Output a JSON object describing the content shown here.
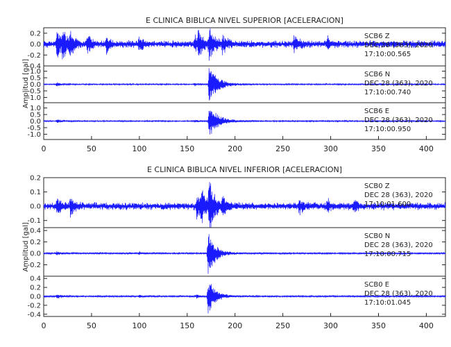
{
  "chart_data": [
    {
      "type": "line",
      "title": "E CLINICA BIBLICA NIVEL SUPERIOR [ACELERACION]",
      "ylabel": "Amplitud [gal]",
      "xlim": [
        0,
        420
      ],
      "x_ticks": [
        0,
        50,
        100,
        150,
        200,
        250,
        300,
        350,
        400
      ],
      "line_color": "#1a1aff",
      "traces": [
        {
          "component": "SCB6   Z",
          "date": "DEC 28 (363), 2020",
          "time": "17:10:00.565",
          "ylim": [
            -0.4,
            0.3
          ],
          "y_ticks": [
            -0.4,
            -0.2,
            0.0,
            0.2
          ],
          "events": [
            [
              14,
              0.25,
              4
            ],
            [
              20,
              0.26,
              5
            ],
            [
              28,
              0.2,
              3
            ],
            [
              46,
              0.16,
              4
            ],
            [
              66,
              0.16,
              3
            ],
            [
              100,
              0.12,
              4
            ],
            [
              158,
              0.14,
              4
            ],
            [
              162,
              0.22,
              4
            ],
            [
              173,
              0.3,
              5
            ],
            [
              187,
              0.16,
              4
            ],
            [
              262,
              0.15,
              4
            ],
            [
              297,
              0.11,
              3
            ]
          ],
          "noise": 0.05
        },
        {
          "component": "SCB6   N",
          "date": "DEC 28 (363), 2020",
          "time": "17:10:00.740",
          "ylim": [
            -1.4,
            1.4
          ],
          "y_ticks": [
            -1.0,
            -0.5,
            0.0,
            0.5,
            1.0
          ],
          "events": [
            [
              173,
              1.4,
              9
            ],
            [
              14,
              0.12,
              4
            ],
            [
              158,
              0.1,
              4
            ]
          ],
          "noise": 0.04
        },
        {
          "component": "SCB6   E",
          "date": "DEC 28 (363), 2020",
          "time": "17:10:00.950",
          "ylim": [
            -1.4,
            1.4
          ],
          "y_ticks": [
            -1.0,
            -0.5,
            0.0,
            0.5,
            1.0
          ],
          "events": [
            [
              173,
              1.3,
              9
            ],
            [
              14,
              0.12,
              4
            ],
            [
              158,
              0.1,
              4
            ]
          ],
          "noise": 0.04
        }
      ]
    },
    {
      "type": "line",
      "title": "E CLINICA BIBLICA NIVEL INFERIOR [ACELERACION]",
      "ylabel": "Amplitud [gal]",
      "xlim": [
        0,
        420
      ],
      "x_ticks": [
        0,
        50,
        100,
        150,
        200,
        250,
        300,
        350,
        400
      ],
      "line_color": "#1a1aff",
      "traces": [
        {
          "component": "SCB0   Z",
          "date": "DEC 28 (363), 2020",
          "time": "17:10:01.600",
          "ylim": [
            -0.15,
            0.2
          ],
          "y_ticks": [
            -0.1,
            0.0,
            0.1,
            0.2
          ],
          "events": [
            [
              14,
              0.06,
              4
            ],
            [
              28,
              0.055,
              4
            ],
            [
              160,
              0.08,
              5
            ],
            [
              165,
              0.09,
              5
            ],
            [
              173,
              0.2,
              5
            ],
            [
              187,
              0.05,
              4
            ],
            [
              267,
              0.05,
              4
            ],
            [
              297,
              0.04,
              3
            ],
            [
              325,
              0.05,
              3
            ]
          ],
          "noise": 0.02
        },
        {
          "component": "SCB0   N",
          "date": "DEC 28 (363), 2020",
          "time": "17:10:00.715",
          "ylim": [
            -0.4,
            0.45
          ],
          "y_ticks": [
            -0.2,
            0.0,
            0.2,
            0.4
          ],
          "events": [
            [
              172,
              0.42,
              7
            ],
            [
              14,
              0.03,
              4
            ],
            [
              100,
              0.025,
              3
            ]
          ],
          "noise": 0.012
        },
        {
          "component": "SCB0   E",
          "date": "DEC 28 (363), 2020",
          "time": "17:10:01.045",
          "ylim": [
            -0.45,
            0.45
          ],
          "y_ticks": [
            -0.4,
            -0.2,
            0.0,
            0.2,
            0.4
          ],
          "events": [
            [
              172,
              0.4,
              7
            ],
            [
              14,
              0.05,
              4
            ],
            [
              100,
              0.03,
              3
            ],
            [
              160,
              0.04,
              3
            ]
          ],
          "noise": 0.015
        }
      ]
    }
  ]
}
